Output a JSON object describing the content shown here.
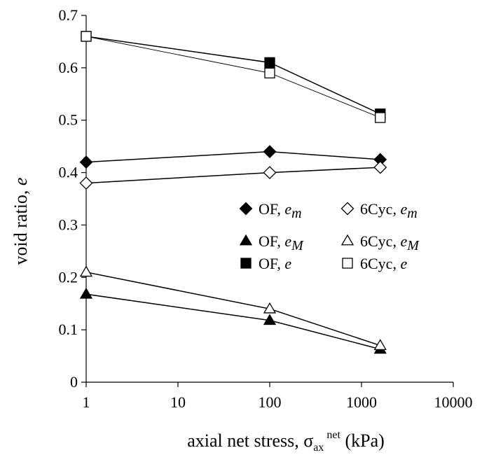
{
  "chart_data": {
    "type": "scatter",
    "title": "",
    "xlabel": {
      "prefix": "axial net stress, ",
      "symbol": "σ",
      "sub": "ax",
      "sup": "net",
      "suffix": " (kPa)"
    },
    "ylabel": {
      "prefix": "void ratio, ",
      "italic": "e"
    },
    "xscale": "log",
    "xlim": [
      1,
      10000
    ],
    "ylim": [
      0,
      0.7
    ],
    "xticks": [
      1,
      10,
      100,
      1000,
      10000
    ],
    "xtick_labels": [
      "1",
      "10",
      "100",
      "1000",
      "10000"
    ],
    "yticks": [
      0,
      0.1,
      0.2,
      0.3,
      0.4,
      0.5,
      0.6,
      0.7
    ],
    "ytick_labels": [
      "0",
      "0.1",
      "0.2",
      "0.3",
      "0.4",
      "0.5",
      "0.6",
      "0.7"
    ],
    "grid": false,
    "legend_position": "right-middle",
    "series": [
      {
        "key": "of_em",
        "legend_prefix": "OF, ",
        "legend_var": "e",
        "legend_sub": "m",
        "marker": "diamond",
        "fill": "black",
        "line_width": 1.5,
        "x": [
          1,
          100,
          1600
        ],
        "y": [
          0.42,
          0.44,
          0.425
        ]
      },
      {
        "key": "of_eM",
        "legend_prefix": "OF, ",
        "legend_var": "e",
        "legend_sub": "M",
        "marker": "triangle",
        "fill": "black",
        "line_width": 1.5,
        "x": [
          1,
          100,
          1600
        ],
        "y": [
          0.168,
          0.118,
          0.063
        ]
      },
      {
        "key": "of_e",
        "legend_prefix": "OF, ",
        "legend_var": "e",
        "legend_sub": "",
        "marker": "square",
        "fill": "black",
        "line_width": 1.5,
        "x": [
          1,
          100,
          1600
        ],
        "y": [
          0.66,
          0.61,
          0.512
        ]
      },
      {
        "key": "cyc_em",
        "legend_prefix": "6Cyc, ",
        "legend_var": "e",
        "legend_sub": "m",
        "marker": "diamond",
        "fill": "white",
        "line_width": 1.5,
        "x": [
          1,
          100,
          1600
        ],
        "y": [
          0.38,
          0.4,
          0.41
        ]
      },
      {
        "key": "cyc_eM",
        "legend_prefix": "6Cyc, ",
        "legend_var": "e",
        "legend_sub": "M",
        "marker": "triangle",
        "fill": "white",
        "line_width": 1.5,
        "x": [
          1,
          100,
          1600
        ],
        "y": [
          0.21,
          0.14,
          0.07
        ]
      },
      {
        "key": "cyc_e",
        "legend_prefix": "6Cyc, ",
        "legend_var": "e",
        "legend_sub": "",
        "marker": "square",
        "fill": "white",
        "line_width": 0.9,
        "x": [
          1,
          100,
          1600
        ],
        "y": [
          0.66,
          0.59,
          0.505
        ]
      }
    ],
    "legend_order": [
      "of_em",
      "cyc_em",
      "of_eM",
      "cyc_eM",
      "of_e",
      "cyc_e"
    ]
  }
}
